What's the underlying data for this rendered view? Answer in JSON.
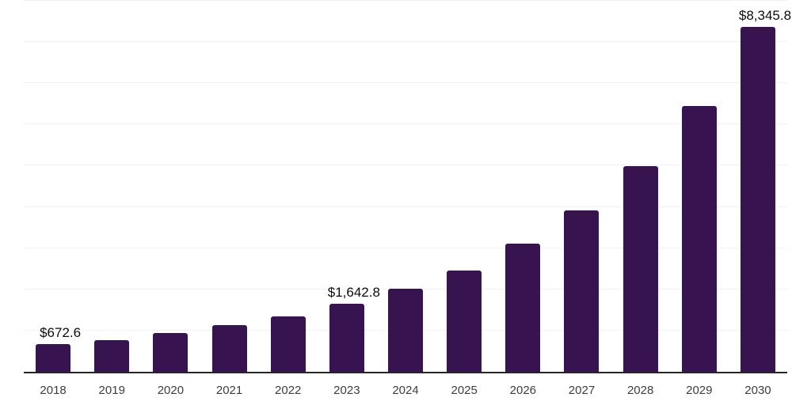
{
  "chart_data": {
    "type": "bar",
    "title": "",
    "categories": [
      "2018",
      "2019",
      "2020",
      "2021",
      "2022",
      "2023",
      "2024",
      "2025",
      "2026",
      "2027",
      "2028",
      "2029",
      "2030"
    ],
    "values": [
      672.6,
      775,
      930,
      1125,
      1335,
      1642.8,
      2005,
      2455,
      3110,
      3905,
      4980,
      6430,
      8345.8
    ],
    "value_labels": [
      "$672.6",
      null,
      null,
      null,
      null,
      "$1,642.8",
      null,
      null,
      null,
      null,
      null,
      null,
      "$8,345.8"
    ],
    "labeled_points": [
      {
        "category": "2018",
        "label": "$672.6"
      },
      {
        "category": "2023",
        "label": "$1,642.8"
      },
      {
        "category": "2030",
        "label": "$8,345.8"
      }
    ],
    "xlabel": "",
    "ylabel": "",
    "ylim": [
      0,
      9000
    ],
    "gridline_step": 1000,
    "grid": true,
    "legend": false,
    "y_axis_tick_labels_visible": false,
    "colors": {
      "bar": "#371450",
      "axis": "#262626",
      "gridline": "#f1f1f1",
      "value_label": "#0d0d0d",
      "tick_label": "#3d3d3d",
      "background": "#ffffff"
    }
  }
}
